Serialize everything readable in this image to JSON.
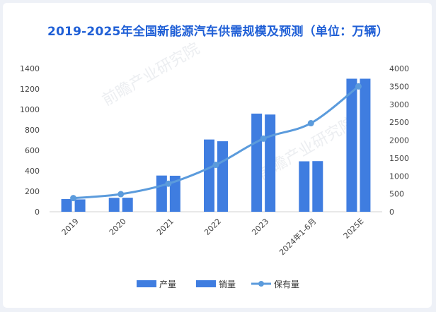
{
  "chart_data": {
    "type": "bar",
    "title": "2019-2025年全国新能源汽车供需规模及预测（单位：万辆）",
    "categories": [
      "2019",
      "2020",
      "2021",
      "2022",
      "2023",
      "2024年1-6月",
      "2025E"
    ],
    "series": [
      {
        "name": "产量",
        "kind": "bar",
        "axis": "left",
        "color": "#3f7de0",
        "values": [
          124,
          136,
          354,
          706,
          959,
          493,
          1300
        ]
      },
      {
        "name": "销量",
        "kind": "bar",
        "axis": "left",
        "color": "#3f7de0",
        "values": [
          121,
          137,
          352,
          689,
          950,
          495,
          1300
        ]
      },
      {
        "name": "保有量",
        "kind": "line",
        "axis": "right",
        "color": "#5b9bdc",
        "values": [
          381,
          492,
          784,
          1310,
          2041,
          2472,
          3500
        ]
      }
    ],
    "y_left": {
      "min": 0,
      "max": 1400,
      "ticks": [
        0,
        200,
        400,
        600,
        800,
        1000,
        1200,
        1400
      ]
    },
    "y_right": {
      "min": 0,
      "max": 4000,
      "ticks": [
        0,
        500,
        1000,
        1500,
        2000,
        2500,
        3000,
        3500,
        4000
      ]
    },
    "grid": false,
    "legend_position": "bottom"
  },
  "watermark": "前瞻产业研究院"
}
